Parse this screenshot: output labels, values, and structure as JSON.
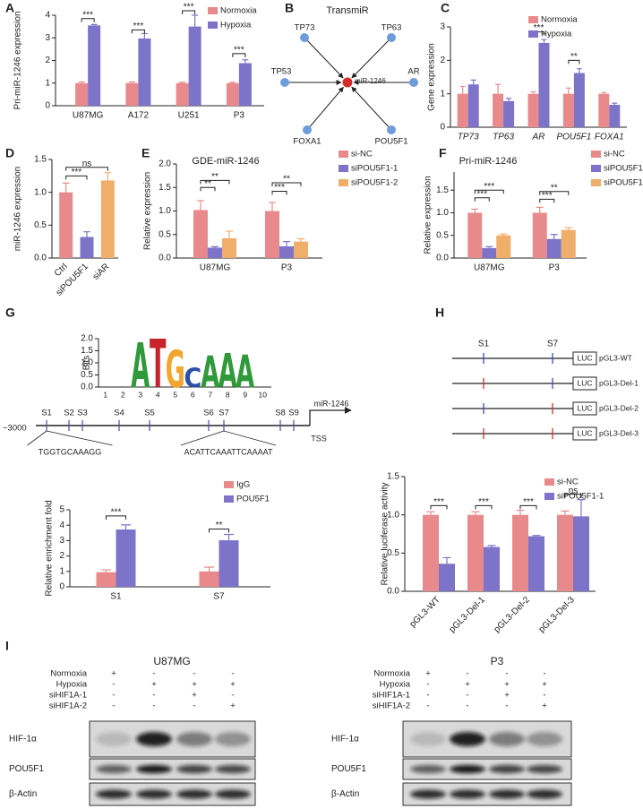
{
  "panel_labels": [
    "A",
    "B",
    "C",
    "D",
    "E",
    "F",
    "G",
    "H",
    "I"
  ],
  "chart_data": [
    {
      "type": "bar",
      "y_label": "Pri-miR-1246 expression",
      "categories": [
        "U87MG",
        "A172",
        "U251",
        "P3"
      ],
      "ylim": [
        0,
        4
      ],
      "yticks": [
        0,
        1,
        2,
        3,
        4
      ],
      "series": [
        {
          "name": "Normoxia",
          "color": "#e88a8c",
          "values": [
            1.0,
            1.0,
            1.0,
            1.0
          ],
          "errors": [
            0.05,
            0.05,
            0.04,
            0.03
          ]
        },
        {
          "name": "Hypoxia",
          "color": "#7d73c9",
          "values": [
            3.55,
            2.97,
            3.5,
            1.88
          ],
          "errors": [
            0.04,
            0.22,
            0.5,
            0.15
          ]
        }
      ],
      "brackets": [
        {
          "label": "***",
          "category": "U87MG",
          "between": [
            "Normoxia",
            "Hypoxia"
          ],
          "y": 3.85
        },
        {
          "label": "***",
          "category": "A172",
          "between": [
            "Normoxia",
            "Hypoxia"
          ],
          "y": 3.35
        },
        {
          "label": "***",
          "category": "U251",
          "between": [
            "Normoxia",
            "Hypoxia"
          ],
          "y": 4.2
        },
        {
          "label": "***",
          "category": "P3",
          "between": [
            "Normoxia",
            "Hypoxia"
          ],
          "y": 2.3
        }
      ]
    },
    {
      "type": "bar",
      "y_label": "Gene expression",
      "categories": [
        "TP73",
        "TP63",
        "AR",
        "POU5F1",
        "FOXA1"
      ],
      "ylim": [
        0,
        3
      ],
      "yticks": [
        0,
        1,
        2,
        3
      ],
      "series": [
        {
          "name": "Normoxia",
          "color": "#e88a8c",
          "values": [
            1.0,
            1.0,
            1.0,
            1.0,
            1.0
          ],
          "errors": [
            0.22,
            0.28,
            0.06,
            0.17,
            0.04
          ]
        },
        {
          "name": "Hypoxia",
          "color": "#7d73c9",
          "values": [
            1.28,
            0.78,
            2.52,
            1.62,
            0.67
          ],
          "errors": [
            0.13,
            0.08,
            0.1,
            0.13,
            0.05
          ]
        }
      ],
      "brackets": [
        {
          "label": "***",
          "category": "AR",
          "between": [
            "Normoxia",
            "Hypoxia"
          ],
          "y": 2.85
        },
        {
          "label": "**",
          "category": "POU5F1",
          "between": [
            "Normoxia",
            "Hypoxia"
          ],
          "y": 2.0
        }
      ]
    },
    {
      "type": "bar",
      "y_label": "miR-1246 expression",
      "categories": [
        "Ctrl",
        "siPOU5F1",
        "siAR"
      ],
      "ylim": [
        0,
        1.5
      ],
      "yticks": [
        {
          "value": 0,
          "label": "0.0"
        },
        {
          "value": 0.5,
          "label": "0.5"
        },
        {
          "value": 1,
          "label": "1.0"
        },
        {
          "value": 1.5,
          "label": "1.5"
        }
      ],
      "series": [
        {
          "colors": [
            "#e88a8c",
            "#7d73c9",
            "#f0ae6b"
          ],
          "values": [
            1.0,
            0.32,
            1.18
          ],
          "errors": [
            0.14,
            0.08,
            0.12
          ]
        }
      ],
      "brackets": [
        {
          "label": "***",
          "between": [
            "Ctrl",
            "siPOU5F1"
          ],
          "y": 1.25
        },
        {
          "label": "ns",
          "between": [
            "Ctrl",
            "siAR"
          ],
          "y": 1.38
        }
      ]
    },
    {
      "type": "bar",
      "title": "GDE-miR-1246",
      "y_label": "Relative expression",
      "categories": [
        "U87MG",
        "P3"
      ],
      "ylim": [
        0,
        2
      ],
      "yticks": [
        {
          "value": 0,
          "label": "0.0"
        },
        {
          "value": 0.5,
          "label": "0.5"
        },
        {
          "value": 1,
          "label": "1.0"
        },
        {
          "value": 1.5,
          "label": "1.5"
        },
        {
          "value": 2,
          "label": "2.0"
        }
      ],
      "series": [
        {
          "name": "si-NC",
          "color": "#e88a8c",
          "values": [
            1.02,
            1.0
          ],
          "errors": [
            0.2,
            0.18
          ]
        },
        {
          "name": "siPOU5F1-1",
          "color": "#7d73c9",
          "values": [
            0.22,
            0.25
          ],
          "errors": [
            0.02,
            0.1
          ]
        },
        {
          "name": "siPOU5F1-2",
          "color": "#f0ae6b",
          "values": [
            0.42,
            0.35
          ],
          "errors": [
            0.15,
            0.06
          ]
        }
      ],
      "brackets": [
        {
          "label": "**",
          "category": "U87MG",
          "between": [
            "si-NC",
            "siPOU5F1-1"
          ],
          "y": 1.5
        },
        {
          "label": "**",
          "category": "U87MG",
          "between": [
            "si-NC",
            "siPOU5F1-2"
          ],
          "y": 1.65
        },
        {
          "label": "***",
          "category": "P3",
          "between": [
            "si-NC",
            "siPOU5F1-1"
          ],
          "y": 1.42
        },
        {
          "label": "**",
          "category": "P3",
          "between": [
            "si-NC",
            "siPOU5F1-2"
          ],
          "y": 1.6
        }
      ]
    },
    {
      "type": "bar",
      "title": "Pri-miR-1246",
      "y_label": "Relative expression",
      "categories": [
        "U87MG",
        "P3"
      ],
      "ylim": [
        0,
        1.9
      ],
      "yticks": [
        {
          "value": 0,
          "label": "0.0"
        },
        {
          "value": 0.5,
          "label": "0.5"
        },
        {
          "value": 1,
          "label": "1.0"
        },
        {
          "value": 1.5,
          "label": "1.5"
        }
      ],
      "series": [
        {
          "name": "si-NC",
          "color": "#e88a8c",
          "values": [
            1.0,
            1.0
          ],
          "errors": [
            0.08,
            0.12
          ]
        },
        {
          "name": "siPOU5F1-1",
          "color": "#7d73c9",
          "values": [
            0.22,
            0.42
          ],
          "errors": [
            0.03,
            0.1
          ]
        },
        {
          "name": "siPOU5F1-2",
          "color": "#f0ae6b",
          "values": [
            0.5,
            0.62
          ],
          "errors": [
            0.03,
            0.05
          ]
        }
      ],
      "brackets": [
        {
          "label": "***",
          "category": "U87MG",
          "between": [
            "si-NC",
            "siPOU5F1-1"
          ],
          "y": 1.33
        },
        {
          "label": "***",
          "category": "U87MG",
          "between": [
            "si-NC",
            "siPOU5F1-2"
          ],
          "y": 1.5
        },
        {
          "label": "***",
          "category": "P3",
          "between": [
            "si-NC",
            "siPOU5F1-1"
          ],
          "y": 1.3
        },
        {
          "label": "**",
          "category": "P3",
          "between": [
            "si-NC",
            "siPOU5F1-2"
          ],
          "y": 1.47
        }
      ]
    },
    {
      "type": "logo",
      "y_label": "Bits",
      "categories": [
        1,
        2,
        3,
        4,
        5,
        6,
        7,
        8,
        9,
        10
      ],
      "letters": [
        null,
        null,
        "A",
        "T",
        "G",
        "C",
        "A",
        "A",
        "A",
        null
      ],
      "values": [
        null,
        null,
        1.85,
        2.0,
        1.55,
        0.8,
        1.3,
        1.4,
        1.35,
        null
      ],
      "letter_colors": {
        "A": "#2f9a3a",
        "T": "#c8232c",
        "G": "#f2a62f",
        "C": "#2e4fa8"
      },
      "ylim": [
        0,
        2
      ],
      "yticks": [
        {
          "value": 0,
          "label": "0.0"
        },
        {
          "value": 0.5,
          "label": "0.5"
        },
        {
          "value": 1,
          "label": "1.0"
        },
        {
          "value": 1.5,
          "label": "1.5"
        },
        {
          "value": 2,
          "label": "2.0"
        }
      ]
    },
    {
      "type": "bar",
      "y_label": "Relative enrichment fold",
      "categories": [
        "S1",
        "S7"
      ],
      "ylim": [
        0,
        5
      ],
      "yticks": [
        0,
        1,
        2,
        3,
        4,
        5
      ],
      "series": [
        {
          "name": "IgG",
          "color": "#e88a8c",
          "values": [
            0.95,
            1.0
          ],
          "errors": [
            0.15,
            0.28
          ]
        },
        {
          "name": "POU5F1",
          "color": "#7d73c9",
          "values": [
            3.72,
            3.02
          ],
          "errors": [
            0.3,
            0.38
          ]
        }
      ],
      "brackets": [
        {
          "label": "***",
          "category": "S1",
          "between": [
            "IgG",
            "POU5F1"
          ],
          "y": 4.6
        },
        {
          "label": "**",
          "category": "S7",
          "between": [
            "IgG",
            "POU5F1"
          ],
          "y": 3.75
        }
      ]
    },
    {
      "type": "bar",
      "y_label": "Relative luciferase activity",
      "categories": [
        "pGL3-WT",
        "pGL3-Del-1",
        "pGL3-Del-2",
        "pGL3-Del-3"
      ],
      "ylim": [
        0,
        1.5
      ],
      "yticks": [
        {
          "value": 0,
          "label": "0.0"
        },
        {
          "value": 0.5,
          "label": "0.5"
        },
        {
          "value": 1,
          "label": "1.0"
        },
        {
          "value": 1.5,
          "label": "1.5"
        }
      ],
      "series": [
        {
          "name": "si-NC",
          "color": "#e88a8c",
          "values": [
            1.0,
            1.0,
            1.0,
            1.0
          ],
          "errors": [
            0.04,
            0.04,
            0.06,
            0.05
          ]
        },
        {
          "name": "siPOU5F1-1",
          "color": "#7d73c9",
          "values": [
            0.36,
            0.58,
            0.72,
            0.98
          ],
          "errors": [
            0.08,
            0.02,
            0.01,
            0.22
          ]
        }
      ],
      "brackets": [
        {
          "label": "***",
          "category": "pGL3-WT",
          "between": [
            "si-NC",
            "siPOU5F1-1"
          ],
          "y": 1.12
        },
        {
          "label": "***",
          "category": "pGL3-Del-1",
          "between": [
            "si-NC",
            "siPOU5F1-1"
          ],
          "y": 1.12
        },
        {
          "label": "***",
          "category": "pGL3-Del-2",
          "between": [
            "si-NC",
            "siPOU5F1-1"
          ],
          "y": 1.12
        },
        {
          "label": "ns",
          "category": "pGL3-Del-3",
          "between": [
            "si-NC",
            "siPOU5F1-1"
          ],
          "y": 1.27
        }
      ]
    }
  ],
  "network": {
    "title": "TransmiR",
    "center": "miR-1246",
    "nodes": [
      "TP73",
      "TP63",
      "TP53",
      "AR",
      "FOXA1",
      "POU5F1"
    ]
  },
  "promoter": {
    "start": "~3000",
    "sites": [
      "S1",
      "S2",
      "S3",
      "S4",
      "S5",
      "S6",
      "S7",
      "S8",
      "S9"
    ],
    "gene": "miR-1246",
    "tss": "TSS",
    "sequences": [
      "TGGTGCAAAGG",
      "ACATTCAAATTCAAAAT"
    ]
  },
  "constructs": {
    "sites": [
      "S1",
      "S7"
    ],
    "reporter": "LUC",
    "names": [
      "pGL3-WT",
      "pGL3-Del-1",
      "pGL3-Del-2",
      "pGL3-Del-3"
    ],
    "deleted": [
      [
        false,
        false
      ],
      [
        true,
        false
      ],
      [
        false,
        true
      ],
      [
        true,
        true
      ]
    ]
  },
  "western": {
    "blots": [
      {
        "cell_line": "U87MG"
      },
      {
        "cell_line": "P3"
      }
    ],
    "conditions": [
      "Normoxia",
      "Hypoxia",
      "siHIF1A-1",
      "siHIF1A-2"
    ],
    "treatments": [
      [
        "+",
        "-",
        "-",
        "-"
      ],
      [
        "-",
        "+",
        "+",
        "+"
      ],
      [
        "-",
        "-",
        "+",
        "-"
      ],
      [
        "-",
        "-",
        "-",
        "+"
      ]
    ],
    "proteins": [
      "HIF-1α",
      "POU5F1",
      "β-Actin"
    ]
  }
}
